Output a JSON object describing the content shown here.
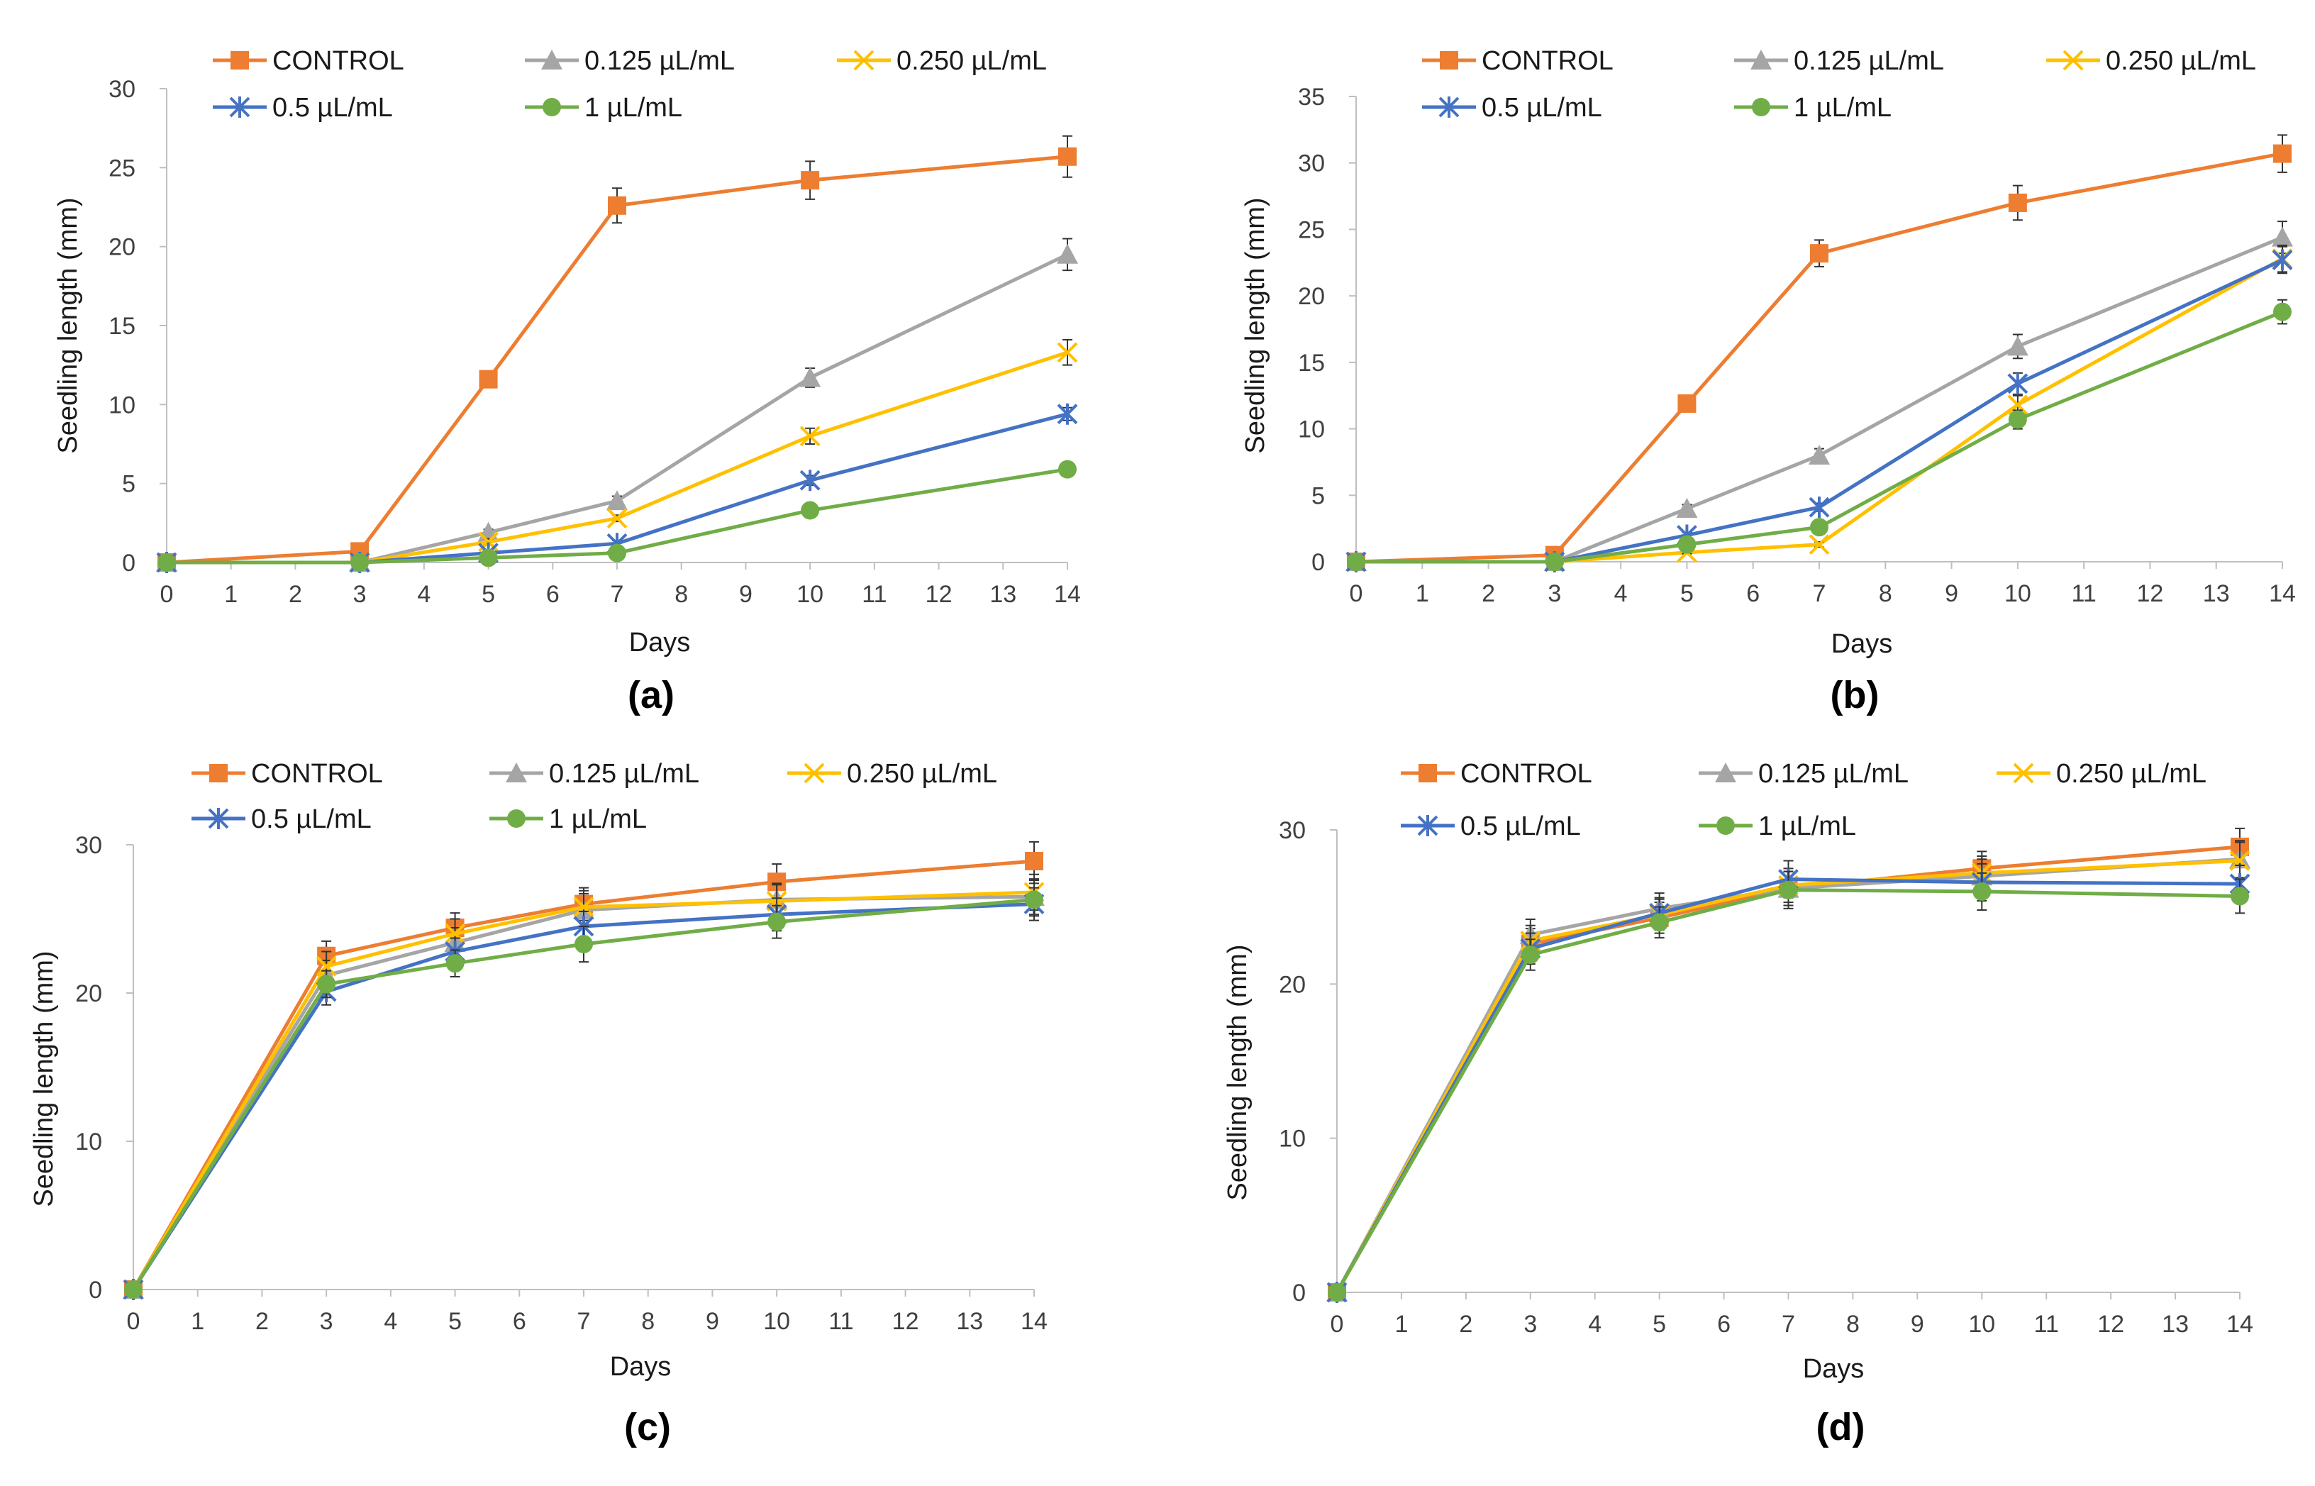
{
  "chart_data": [
    {
      "type": "line",
      "panel_label": "(a)",
      "xlabel": "Days",
      "ylabel": "Seedling length (mm)",
      "x_ticks": [
        "0",
        "1",
        "2",
        "3",
        "4",
        "5",
        "6",
        "7",
        "8",
        "9",
        "10",
        "11",
        "12",
        "13",
        "14"
      ],
      "y_ticks": [
        "0",
        "5",
        "10",
        "15",
        "20",
        "25",
        "30"
      ],
      "ylim": [
        0,
        30
      ],
      "x": [
        0,
        3,
        5,
        7,
        10,
        14
      ],
      "series": [
        {
          "name": "CONTROL",
          "color": "#ED7D31",
          "marker": "square",
          "values": [
            0,
            0.7,
            11.6,
            22.6,
            24.2,
            25.7
          ],
          "errors": [
            0,
            0.1,
            0.4,
            1.1,
            1.2,
            1.3
          ]
        },
        {
          "name": "0.125 µL/mL",
          "color": "#A5A5A5",
          "marker": "triangle",
          "values": [
            0,
            0,
            1.9,
            3.9,
            11.7,
            19.5
          ],
          "errors": [
            0,
            0,
            0.2,
            0.3,
            0.6,
            1.0
          ]
        },
        {
          "name": "0.250 µL/mL",
          "color": "#FFC000",
          "marker": "x",
          "values": [
            0,
            0,
            1.3,
            2.8,
            8.0,
            13.3
          ],
          "errors": [
            0,
            0,
            0.2,
            0.2,
            0.5,
            0.8
          ]
        },
        {
          "name": "0.5 µL/mL",
          "color": "#4472C4",
          "marker": "star",
          "values": [
            0,
            0,
            0.6,
            1.2,
            5.2,
            9.4
          ],
          "errors": [
            0,
            0,
            0.1,
            0.2,
            0.3,
            0.4
          ]
        },
        {
          "name": "1 µL/mL",
          "color": "#70AD47",
          "marker": "circle",
          "values": [
            0,
            0,
            0.3,
            0.6,
            3.3,
            5.9
          ],
          "errors": [
            0,
            0,
            0.1,
            0.1,
            0.2,
            0.3
          ]
        }
      ]
    },
    {
      "type": "line",
      "panel_label": "(b)",
      "xlabel": "Days",
      "ylabel": "Seedling length (mm)",
      "x_ticks": [
        "0",
        "1",
        "2",
        "3",
        "4",
        "5",
        "6",
        "7",
        "8",
        "9",
        "10",
        "11",
        "12",
        "13",
        "14"
      ],
      "y_ticks": [
        "0",
        "5",
        "10",
        "15",
        "20",
        "25",
        "30",
        "35"
      ],
      "ylim": [
        0,
        35
      ],
      "x": [
        0,
        3,
        5,
        7,
        10,
        14
      ],
      "series": [
        {
          "name": "CONTROL",
          "color": "#ED7D31",
          "marker": "square",
          "values": [
            0,
            0.5,
            11.9,
            23.2,
            27.0,
            30.7
          ],
          "errors": [
            0,
            0.1,
            0.5,
            1.0,
            1.3,
            1.4
          ]
        },
        {
          "name": "0.125 µL/mL",
          "color": "#A5A5A5",
          "marker": "triangle",
          "values": [
            0,
            0,
            4.0,
            8.0,
            16.2,
            24.4
          ],
          "errors": [
            0,
            0,
            0.3,
            0.5,
            0.9,
            1.2
          ]
        },
        {
          "name": "0.250 µL/mL",
          "color": "#FFC000",
          "marker": "x",
          "values": [
            0,
            0,
            0.7,
            1.3,
            11.8,
            22.8
          ],
          "errors": [
            0,
            0,
            0.1,
            0.2,
            0.7,
            1.0
          ]
        },
        {
          "name": "0.5 µL/mL",
          "color": "#4472C4",
          "marker": "star",
          "values": [
            0,
            0,
            2.0,
            4.1,
            13.4,
            22.7
          ],
          "errors": [
            0,
            0,
            0.2,
            0.3,
            0.8,
            1.0
          ]
        },
        {
          "name": "1 µL/mL",
          "color": "#70AD47",
          "marker": "circle",
          "values": [
            0,
            0,
            1.3,
            2.6,
            10.7,
            18.8
          ],
          "errors": [
            0,
            0,
            0.1,
            0.2,
            0.7,
            0.9
          ]
        }
      ]
    },
    {
      "type": "line",
      "panel_label": "(c)",
      "xlabel": "Days",
      "ylabel": "Seedling length (mm)",
      "x_ticks": [
        "0",
        "1",
        "2",
        "3",
        "4",
        "5",
        "6",
        "7",
        "8",
        "9",
        "10",
        "11",
        "12",
        "13",
        "14"
      ],
      "y_ticks": [
        "0",
        "10",
        "20",
        "30"
      ],
      "ylim": [
        0,
        30
      ],
      "x": [
        0,
        3,
        5,
        7,
        10,
        14
      ],
      "series": [
        {
          "name": "CONTROL",
          "color": "#ED7D31",
          "marker": "square",
          "values": [
            0,
            22.5,
            24.4,
            26.0,
            27.5,
            28.9
          ],
          "errors": [
            0,
            1.0,
            1.0,
            1.1,
            1.2,
            1.3
          ]
        },
        {
          "name": "0.125 µL/mL",
          "color": "#A5A5A5",
          "marker": "triangle",
          "values": [
            0,
            21.2,
            23.4,
            25.6,
            26.3,
            26.5
          ],
          "errors": [
            0,
            1.0,
            1.0,
            1.1,
            1.1,
            1.2
          ]
        },
        {
          "name": "0.250 µL/mL",
          "color": "#FFC000",
          "marker": "x",
          "values": [
            0,
            21.8,
            24.0,
            25.8,
            26.2,
            26.8
          ],
          "errors": [
            0,
            1.0,
            1.0,
            1.1,
            1.1,
            1.2
          ]
        },
        {
          "name": "0.5 µL/mL",
          "color": "#4472C4",
          "marker": "star",
          "values": [
            0,
            20.1,
            22.8,
            24.5,
            25.3,
            26.0
          ],
          "errors": [
            0,
            0.9,
            0.9,
            1.0,
            1.1,
            1.1
          ]
        },
        {
          "name": "1 µL/mL",
          "color": "#70AD47",
          "marker": "circle",
          "values": [
            0,
            20.6,
            22.0,
            23.3,
            24.8,
            26.3
          ],
          "errors": [
            0,
            0.9,
            0.9,
            1.2,
            1.1,
            1.1
          ]
        }
      ]
    },
    {
      "type": "line",
      "panel_label": "(d)",
      "xlabel": "Days",
      "ylabel": "Seedling length (mm)",
      "x_ticks": [
        "0",
        "1",
        "2",
        "3",
        "4",
        "5",
        "6",
        "7",
        "8",
        "9",
        "10",
        "11",
        "12",
        "13",
        "14"
      ],
      "y_ticks": [
        "0",
        "10",
        "20",
        "30"
      ],
      "ylim": [
        0,
        30
      ],
      "x": [
        0,
        3,
        5,
        7,
        10,
        14
      ],
      "series": [
        {
          "name": "CONTROL",
          "color": "#ED7D31",
          "marker": "square",
          "values": [
            0,
            22.6,
            24.3,
            26.2,
            27.5,
            28.9
          ],
          "errors": [
            0,
            1.0,
            1.0,
            1.1,
            1.1,
            1.2
          ]
        },
        {
          "name": "0.125 µL/mL",
          "color": "#A5A5A5",
          "marker": "triangle",
          "values": [
            0,
            23.2,
            24.9,
            26.2,
            27.0,
            28.1
          ],
          "errors": [
            0,
            1.0,
            1.0,
            1.1,
            1.1,
            1.2
          ]
        },
        {
          "name": "0.250 µL/mL",
          "color": "#FFC000",
          "marker": "x",
          "values": [
            0,
            22.8,
            24.5,
            26.4,
            27.2,
            28.0
          ],
          "errors": [
            0,
            1.0,
            1.0,
            1.1,
            1.1,
            1.2
          ]
        },
        {
          "name": "0.5 µL/mL",
          "color": "#4472C4",
          "marker": "star",
          "values": [
            0,
            22.3,
            24.6,
            26.8,
            26.6,
            26.5
          ],
          "errors": [
            0,
            1.0,
            1.0,
            1.2,
            1.2,
            1.2
          ]
        },
        {
          "name": "1 µL/mL",
          "color": "#70AD47",
          "marker": "circle",
          "values": [
            0,
            21.9,
            24.0,
            26.1,
            26.0,
            25.7
          ],
          "errors": [
            0,
            1.0,
            1.0,
            1.2,
            1.2,
            1.1
          ]
        }
      ]
    }
  ]
}
